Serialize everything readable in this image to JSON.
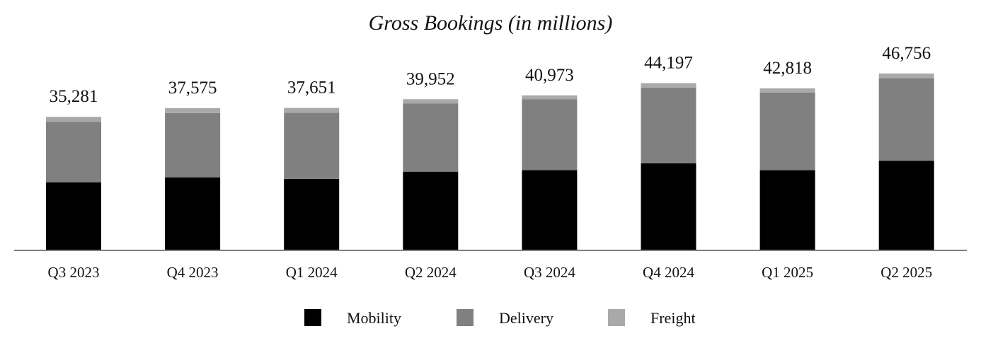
{
  "chart_data": {
    "type": "bar",
    "stacked": true,
    "title": "Gross Bookings (in millions)",
    "xlabel": "",
    "ylabel": "",
    "grid": false,
    "legend_position": "bottom-center",
    "ylim": [
      0,
      50000
    ],
    "categories": [
      "Q3 2023",
      "Q4 2023",
      "Q1 2024",
      "Q2 2024",
      "Q3 2024",
      "Q4 2024",
      "Q1 2025",
      "Q2 2025"
    ],
    "totals": [
      35281,
      37575,
      37651,
      39952,
      40973,
      44197,
      42818,
      46756
    ],
    "total_labels": [
      "35,281",
      "37,575",
      "37,651",
      "39,952",
      "40,973",
      "44,197",
      "42,818",
      "46,756"
    ],
    "series": [
      {
        "name": "Mobility",
        "color": "#000000",
        "values": [
          18000,
          19300,
          18900,
          20800,
          21200,
          23000,
          21200,
          23700
        ]
      },
      {
        "name": "Delivery",
        "color": "#808080",
        "values": [
          16000,
          17000,
          17500,
          18000,
          18700,
          20000,
          20500,
          21800
        ]
      },
      {
        "name": "Freight",
        "color": "#a9a9a9",
        "values": [
          1281,
          1275,
          1251,
          1152,
          1073,
          1197,
          1118,
          1256
        ]
      }
    ]
  }
}
